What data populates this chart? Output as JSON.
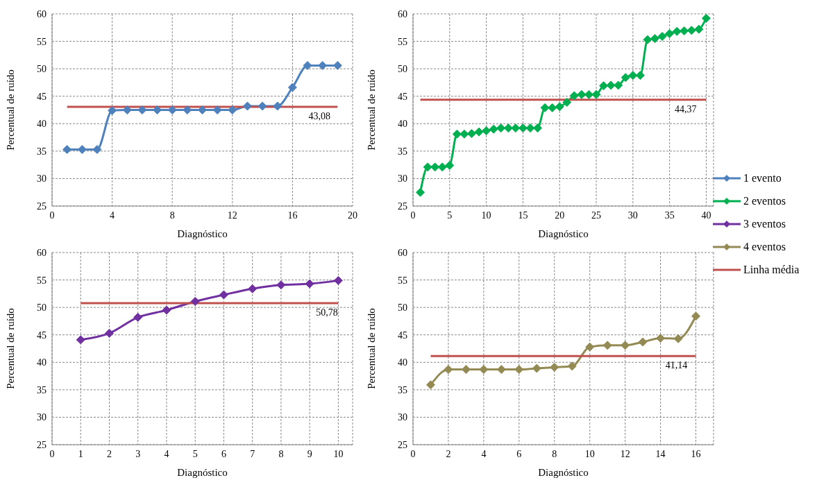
{
  "chart_data": [
    {
      "type": "line",
      "xlabel": "Diagnóstico",
      "ylabel": "Percentual de ruído",
      "x": [
        1,
        2,
        3,
        4,
        5,
        6,
        7,
        8,
        9,
        10,
        11,
        12,
        13,
        14,
        15,
        16,
        17,
        18,
        19
      ],
      "xlim": [
        0,
        20
      ],
      "xticks": [
        0,
        4,
        8,
        12,
        16,
        20
      ],
      "ylim": [
        25,
        60
      ],
      "yticks": [
        25,
        30,
        35,
        40,
        45,
        50,
        55,
        60
      ],
      "grid": true,
      "marker": "diamond",
      "legend": "right",
      "series": [
        {
          "name": "1 evento",
          "color": "#4f81bd",
          "values": [
            35.3,
            35.3,
            35.3,
            42.4,
            42.5,
            42.5,
            42.5,
            42.5,
            42.5,
            42.5,
            42.5,
            42.5,
            43.2,
            43.2,
            43.2,
            46.6,
            50.6,
            50.6,
            50.6
          ]
        },
        {
          "name": "Linha média",
          "type": "line",
          "marker": "none",
          "color": "#c0504d",
          "x": [
            1,
            19
          ],
          "values": [
            43.08,
            43.08
          ]
        }
      ],
      "annotations": [
        {
          "text": "43,08",
          "x": 17.8,
          "y": 43.08
        }
      ]
    },
    {
      "type": "line",
      "xlabel": "Diagnóstico",
      "ylabel": "Percentual de ruído",
      "x": [
        1,
        2,
        3,
        4,
        5,
        6,
        7,
        8,
        9,
        10,
        11,
        12,
        13,
        14,
        15,
        16,
        17,
        18,
        19,
        20,
        21,
        22,
        23,
        24,
        25,
        26,
        27,
        28,
        29,
        30,
        31,
        32,
        33,
        34,
        35,
        36,
        37,
        38,
        39,
        40
      ],
      "xlim": [
        0,
        41
      ],
      "xticks": [
        0,
        5,
        10,
        15,
        20,
        25,
        30,
        35,
        40
      ],
      "ylim": [
        25,
        60
      ],
      "yticks": [
        25,
        30,
        35,
        40,
        45,
        50,
        55,
        60
      ],
      "grid": true,
      "marker": "diamond",
      "legend": "right",
      "series": [
        {
          "name": "2 eventos",
          "color": "#00b050",
          "values": [
            27.5,
            32.1,
            32.1,
            32.1,
            32.4,
            38.1,
            38.1,
            38.2,
            38.5,
            38.7,
            39.0,
            39.2,
            39.2,
            39.2,
            39.2,
            39.2,
            39.2,
            42.9,
            42.9,
            43.1,
            43.9,
            45.1,
            45.3,
            45.3,
            45.3,
            46.9,
            47.0,
            47.0,
            48.4,
            48.8,
            48.8,
            55.3,
            55.5,
            55.9,
            56.4,
            56.8,
            56.9,
            57.0,
            57.2,
            59.2
          ]
        },
        {
          "type": "line",
          "marker": "none",
          "color": "#c0504d",
          "x": [
            1,
            40
          ],
          "values": [
            44.37,
            44.37
          ]
        }
      ],
      "annotations": [
        {
          "text": "44,37",
          "x": 37.2,
          "y": 44.37
        }
      ]
    },
    {
      "type": "line",
      "xlabel": "Diagnóstico",
      "ylabel": "Percentual de ruído",
      "x": [
        1,
        2,
        3,
        4,
        5,
        6,
        7,
        8,
        9,
        10
      ],
      "xlim": [
        0,
        10.5
      ],
      "xticks": [
        0,
        1,
        2,
        3,
        4,
        5,
        6,
        7,
        8,
        9,
        10
      ],
      "ylim": [
        25,
        60
      ],
      "yticks": [
        25,
        30,
        35,
        40,
        45,
        50,
        55,
        60
      ],
      "grid": true,
      "marker": "diamond",
      "legend": "right",
      "series": [
        {
          "name": "3 eventos",
          "color": "#7030a0",
          "values": [
            44.1,
            45.3,
            48.2,
            49.5,
            51.1,
            52.3,
            53.4,
            54.1,
            54.3,
            54.9
          ]
        },
        {
          "type": "line",
          "marker": "none",
          "color": "#c0504d",
          "x": [
            1,
            10
          ],
          "values": [
            50.78,
            50.78
          ]
        }
      ],
      "annotations": [
        {
          "text": "50,78",
          "x": 9.6,
          "y": 50.78
        }
      ]
    },
    {
      "type": "line",
      "xlabel": "Diagnóstico",
      "ylabel": "Percentual de ruído",
      "x": [
        1,
        2,
        3,
        4,
        5,
        6,
        7,
        8,
        9,
        10,
        11,
        12,
        13,
        14,
        15,
        16
      ],
      "xlim": [
        0,
        17
      ],
      "xticks": [
        0,
        2,
        4,
        6,
        8,
        10,
        12,
        14,
        16
      ],
      "ylim": [
        25,
        60
      ],
      "yticks": [
        25,
        30,
        35,
        40,
        45,
        50,
        55,
        60
      ],
      "grid": true,
      "marker": "diamond",
      "legend": "right",
      "series": [
        {
          "name": "4 eventos",
          "color": "#948a54",
          "values": [
            35.9,
            38.7,
            38.7,
            38.7,
            38.7,
            38.7,
            38.9,
            39.1,
            39.3,
            42.8,
            43.1,
            43.1,
            43.7,
            44.4,
            44.3,
            48.4
          ]
        },
        {
          "type": "line",
          "marker": "none",
          "color": "#c0504d",
          "x": [
            1,
            16
          ],
          "values": [
            41.14,
            41.14
          ]
        }
      ],
      "annotations": [
        {
          "text": "41,14",
          "x": 14.9,
          "y": 41.14
        }
      ]
    }
  ]
}
